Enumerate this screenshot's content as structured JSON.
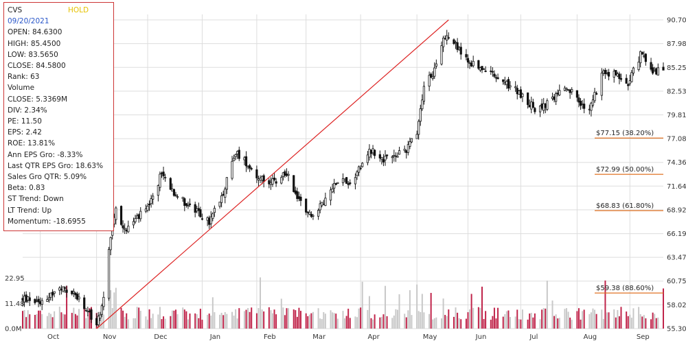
{
  "info": {
    "symbol": "CVS",
    "status": "HOLD",
    "date": "09/20/2021",
    "open": "OPEN: 84.6300",
    "high": "HIGH: 85.4500",
    "low": "LOW: 83.5650",
    "close": "CLOSE: 84.5800",
    "rank": "Rank: 63",
    "volume_label": "Volume",
    "volume_close": "CLOSE: 5.3369M",
    "div": "DIV: 2.34%",
    "pe": "PE: 11.50",
    "eps": "EPS: 2.42",
    "roe": "ROE: 13.81%",
    "ann_eps": "Ann EPS Gro: -8.33%",
    "last_qtr_eps": "Last QTR EPS Gro: 18.63%",
    "sales_gro": "Sales Gro QTR: 5.09%",
    "beta": "Beta: 0.83",
    "st_trend": "ST Trend: Down",
    "lt_trend": "LT Trend: Up",
    "momentum": "Momentum: -18.6955"
  },
  "colors": {
    "up_volume": "#c8c8c8",
    "down_volume": "#c0244a",
    "candle": "#111111",
    "trendline": "#dd2222",
    "fib": "#e07020",
    "grid": "#dddddd"
  },
  "chart_data": {
    "type": "candlestick",
    "price_axis": {
      "ticks": [
        "90.70",
        "87.98",
        "85.25",
        "82.53",
        "79.81",
        "77.08",
        "74.36",
        "71.64",
        "68.92",
        "66.19",
        "63.47",
        "60.75",
        "58.02",
        "55.30"
      ],
      "min": 55.3,
      "max": 90.7
    },
    "volume_axis": {
      "ticks": [
        "22.95",
        "11.48",
        "0.0M"
      ],
      "unit": "M",
      "max": 34.4
    },
    "x_axis": {
      "months": [
        "Oct",
        "Nov",
        "Dec",
        "Jan",
        "Feb",
        "Mar",
        "Apr",
        "May",
        "Jun",
        "Jul",
        "Aug",
        "Sep"
      ],
      "start_date": "2020-09-21",
      "end_date": "2021-09-20"
    },
    "trendline": {
      "from": {
        "date": "2020-11-02",
        "price": 55.3
      },
      "to": {
        "date": "2021-05-21",
        "price": 90.7
      }
    },
    "fib_levels": [
      {
        "label": "$77.15 (38.20%)",
        "price": 77.15
      },
      {
        "label": "$72.99 (50.00%)",
        "price": 72.99
      },
      {
        "label": "$68.83 (61.80%)",
        "price": 68.83
      },
      {
        "label": "$59.38 (88.60%)",
        "price": 59.38
      }
    ],
    "anchors": [
      [
        "2020-09-21",
        58.7
      ],
      [
        "2020-10-01",
        58.5
      ],
      [
        "2020-10-12",
        59.8
      ],
      [
        "2020-10-20",
        59.4
      ],
      [
        "2020-10-27",
        57.3
      ],
      [
        "2020-11-02",
        55.9
      ],
      [
        "2020-11-06",
        58.5
      ],
      [
        "2020-11-09",
        64.8
      ],
      [
        "2020-11-13",
        69.0
      ],
      [
        "2020-11-18",
        66.5
      ],
      [
        "2020-11-24",
        67.8
      ],
      [
        "2020-12-02",
        69.2
      ],
      [
        "2020-12-09",
        73.2
      ],
      [
        "2020-12-16",
        71.0
      ],
      [
        "2020-12-23",
        69.6
      ],
      [
        "2021-01-05",
        67.5
      ],
      [
        "2021-01-13",
        71.0
      ],
      [
        "2021-01-20",
        75.5
      ],
      [
        "2021-01-27",
        74.2
      ],
      [
        "2021-02-03",
        72.4
      ],
      [
        "2021-02-11",
        72.0
      ],
      [
        "2021-02-18",
        73.2
      ],
      [
        "2021-02-25",
        70.0
      ],
      [
        "2021-03-04",
        68.4
      ],
      [
        "2021-03-10",
        69.4
      ],
      [
        "2021-03-19",
        72.5
      ],
      [
        "2021-03-26",
        72.0
      ],
      [
        "2021-04-06",
        75.8
      ],
      [
        "2021-04-14",
        74.8
      ],
      [
        "2021-04-21",
        75.0
      ],
      [
        "2021-04-27",
        75.9
      ],
      [
        "2021-05-03",
        78.0
      ],
      [
        "2021-05-07",
        83.2
      ],
      [
        "2021-05-13",
        84.9
      ],
      [
        "2021-05-19",
        89.0
      ],
      [
        "2021-05-24",
        88.0
      ],
      [
        "2021-06-01",
        85.9
      ],
      [
        "2021-06-10",
        85.0
      ],
      [
        "2021-06-21",
        83.5
      ],
      [
        "2021-06-28",
        82.7
      ],
      [
        "2021-07-09",
        80.5
      ],
      [
        "2021-07-16",
        81.0
      ],
      [
        "2021-07-23",
        82.5
      ],
      [
        "2021-07-30",
        82.4
      ],
      [
        "2021-08-04",
        81.0
      ],
      [
        "2021-08-09",
        80.2
      ],
      [
        "2021-08-16",
        84.4
      ],
      [
        "2021-08-24",
        84.5
      ],
      [
        "2021-08-31",
        83.4
      ],
      [
        "2021-09-07",
        86.8
      ],
      [
        "2021-09-14",
        85.0
      ],
      [
        "2021-09-20",
        84.58
      ]
    ]
  }
}
